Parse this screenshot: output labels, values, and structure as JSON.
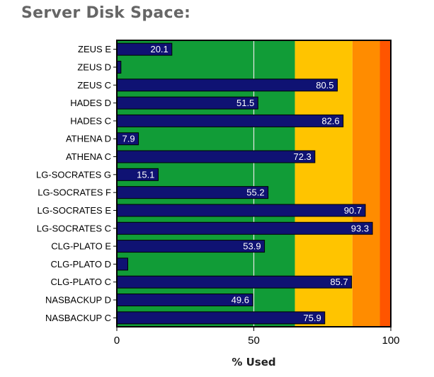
{
  "page_title": "Server Disk Space:",
  "chart_data": {
    "type": "bar",
    "orientation": "horizontal",
    "title": "Server Disk Space:",
    "xlabel": "% Used",
    "ylabel": "",
    "xlim": [
      0,
      100
    ],
    "xticks": [
      0,
      50,
      100
    ],
    "grid": false,
    "categories": [
      "ZEUS E",
      "ZEUS D",
      "ZEUS C",
      "HADES D",
      "HADES C",
      "ATHENA D",
      "ATHENA C",
      "LG-SOCRATES G",
      "LG-SOCRATES F",
      "LG-SOCRATES E",
      "LG-SOCRATES C",
      "CLG-PLATO E",
      "CLG-PLATO D",
      "CLG-PLATO C",
      "NASBACKUP D",
      "NASBACKUP C"
    ],
    "values": [
      20.1,
      1.5,
      80.5,
      51.5,
      82.6,
      7.9,
      72.3,
      15.1,
      55.2,
      90.7,
      93.3,
      53.9,
      4,
      85.7,
      49.6,
      75.9
    ],
    "value_labels": [
      "20.1",
      "",
      "80.5",
      "51.5",
      "82.6",
      "7.9",
      "72.3",
      "15.1",
      "55.2",
      "90.7",
      "93.3",
      "53.9",
      "",
      "85.7",
      "49.6",
      "75.9"
    ],
    "bar_color": "#0f1273",
    "background_bands": [
      {
        "from": 0,
        "to": 65,
        "color": "#119c37"
      },
      {
        "from": 65,
        "to": 86,
        "color": "#ffc400"
      },
      {
        "from": 86,
        "to": 96,
        "color": "#ff8c00"
      },
      {
        "from": 96,
        "to": 100,
        "color": "#ff5500"
      }
    ],
    "reference_line": 50
  }
}
